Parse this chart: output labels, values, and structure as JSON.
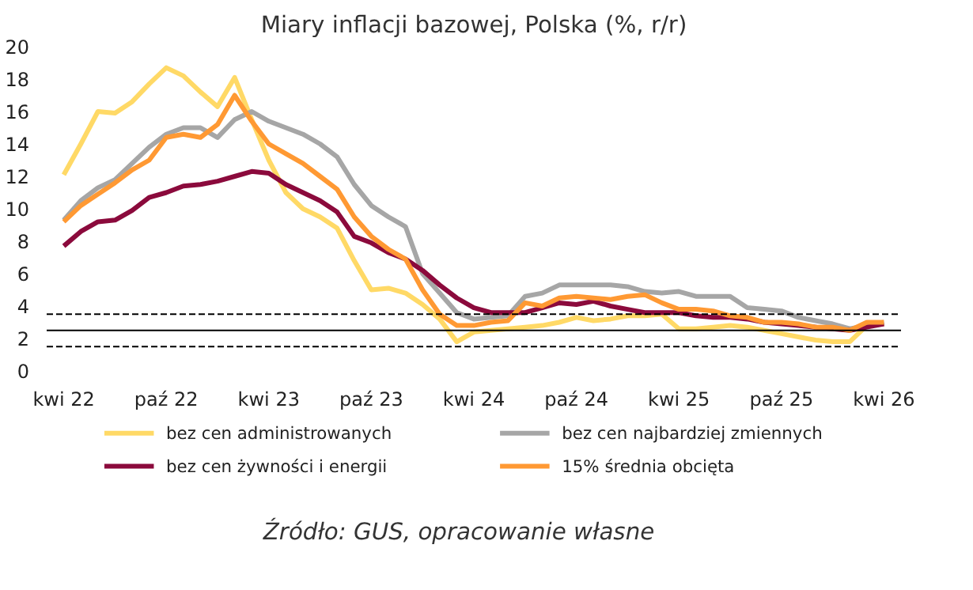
{
  "chart_data": {
    "type": "line",
    "title": "Miary inflacji bazowej, Polska (%, r/r)",
    "x": [
      "2022-04",
      "2022-05",
      "2022-06",
      "2022-07",
      "2022-08",
      "2022-09",
      "2022-10",
      "2022-11",
      "2022-12",
      "2023-01",
      "2023-02",
      "2023-03",
      "2023-04",
      "2023-05",
      "2023-06",
      "2023-07",
      "2023-08",
      "2023-09",
      "2023-10",
      "2023-11",
      "2023-12",
      "2024-01",
      "2024-02",
      "2024-03",
      "2024-04",
      "2024-05",
      "2024-06",
      "2024-07",
      "2024-08",
      "2024-09",
      "2024-10",
      "2024-11",
      "2024-12",
      "2025-01",
      "2025-02",
      "2025-03",
      "2025-04",
      "2025-05",
      "2025-06",
      "2025-07",
      "2025-08",
      "2025-09",
      "2025-10",
      "2025-11",
      "2025-12",
      "2026-01",
      "2026-02",
      "2026-03",
      "2026-04"
    ],
    "series": [
      {
        "name": "bez cen administrowanych",
        "color": "#ffd966",
        "values": [
          12.1,
          14.0,
          16.0,
          15.9,
          16.6,
          17.7,
          18.7,
          18.2,
          17.2,
          16.3,
          18.1,
          15.5,
          13.0,
          11.0,
          10.0,
          9.5,
          8.8,
          6.8,
          5.0,
          5.1,
          4.8,
          4.1,
          3.2,
          1.8,
          2.4,
          2.5,
          2.6,
          2.7,
          2.8,
          3.0,
          3.3,
          3.1,
          3.2,
          3.4,
          3.4,
          3.5,
          2.6,
          2.6,
          2.7,
          2.8,
          2.7,
          2.5,
          2.3,
          2.1,
          1.9,
          1.8,
          1.8,
          2.8,
          2.9
        ]
      },
      {
        "name": "bez cen najbardziej zmiennych",
        "color": "#a6a6a6",
        "values": [
          9.3,
          10.5,
          11.3,
          11.8,
          12.8,
          13.8,
          14.6,
          15.0,
          15.0,
          14.4,
          15.5,
          16.0,
          15.4,
          15.0,
          14.6,
          14.0,
          13.2,
          11.5,
          10.2,
          9.5,
          8.9,
          6.0,
          4.8,
          3.6,
          3.2,
          3.3,
          3.4,
          4.6,
          4.8,
          5.3,
          5.3,
          5.3,
          5.3,
          5.2,
          4.9,
          4.8,
          4.9,
          4.6,
          4.6,
          4.6,
          3.9,
          3.8,
          3.7,
          3.3,
          3.1,
          2.9,
          2.6,
          2.8,
          3.0
        ]
      },
      {
        "name": "bez cen żywności i energii",
        "color": "#8b0a3c",
        "values": [
          7.7,
          8.6,
          9.2,
          9.3,
          9.9,
          10.7,
          11.0,
          11.4,
          11.5,
          11.7,
          12.0,
          12.3,
          12.2,
          11.5,
          11.0,
          10.5,
          9.8,
          8.3,
          7.9,
          7.3,
          6.9,
          6.2,
          5.3,
          4.5,
          3.9,
          3.6,
          3.6,
          3.6,
          3.9,
          4.2,
          4.1,
          4.3,
          4.0,
          3.8,
          3.6,
          3.6,
          3.6,
          3.4,
          3.3,
          3.3,
          3.2,
          3.0,
          2.9,
          2.8,
          2.7,
          2.6,
          2.5,
          2.7,
          2.9
        ]
      },
      {
        "name": "15% średnia obcięta",
        "color": "#ff9933",
        "values": [
          9.2,
          10.2,
          10.9,
          11.6,
          12.4,
          13.0,
          14.4,
          14.6,
          14.4,
          15.2,
          17.0,
          15.4,
          14.0,
          13.4,
          12.8,
          12.0,
          11.2,
          9.5,
          8.3,
          7.5,
          6.9,
          5.0,
          3.5,
          2.8,
          2.8,
          3.0,
          3.1,
          4.2,
          4.0,
          4.5,
          4.6,
          4.5,
          4.4,
          4.6,
          4.7,
          4.2,
          3.8,
          3.8,
          3.7,
          3.4,
          3.3,
          3.0,
          3.0,
          2.9,
          2.7,
          2.7,
          2.5,
          3.0,
          3.0
        ]
      }
    ],
    "ylim": [
      0,
      20
    ],
    "yticks": [
      0,
      2,
      4,
      6,
      8,
      10,
      12,
      14,
      16,
      18,
      20
    ],
    "xlim": [
      "2022-03",
      "2026-05"
    ],
    "xticks": [
      {
        "value": "2022-04",
        "label": "kwi 22"
      },
      {
        "value": "2022-10",
        "label": "paź 22"
      },
      {
        "value": "2023-04",
        "label": "kwi 23"
      },
      {
        "value": "2023-10",
        "label": "paź 23"
      },
      {
        "value": "2024-04",
        "label": "kwi 24"
      },
      {
        "value": "2024-10",
        "label": "paź 24"
      },
      {
        "value": "2025-04",
        "label": "kwi 25"
      },
      {
        "value": "2025-10",
        "label": "paź 25"
      },
      {
        "value": "2026-04",
        "label": "kwi 26"
      }
    ],
    "ref_lines": [
      {
        "axis": "y",
        "value": 3.5,
        "label": null,
        "color": "#000000",
        "line_style": "dashed"
      },
      {
        "axis": "y",
        "value": 2.5,
        "label": null,
        "color": "#000000",
        "line_style": "solid"
      },
      {
        "axis": "y",
        "value": 1.5,
        "label": null,
        "color": "#000000",
        "line_style": "dashed"
      }
    ],
    "annotations": [
      "Źródło: GUS, opracowanie własne"
    ],
    "grid": false,
    "legend": "bottom",
    "marker": "none",
    "line_style": "solid"
  }
}
